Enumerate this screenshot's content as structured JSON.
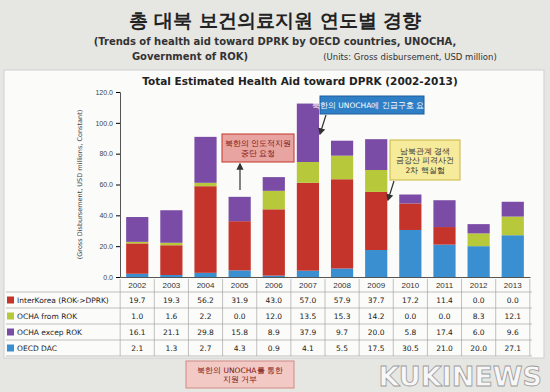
{
  "page": {
    "title": "총 대북 보건의료지원 연도별 경향",
    "subtitle": "(Trends of health aid toward DPRK by OECD countries, UNOCHA,",
    "subtitle2": "Government of ROK)",
    "units": "(Units: Gross disbursement, USD million)"
  },
  "chart_data": {
    "type": "bar",
    "stacked": true,
    "grid": false,
    "title": "Total Estimated Health Aid toward DPRK (2002-2013)",
    "y_label": "(Gross Disbursement, USD millions, Constant)",
    "categories": [
      "2002",
      "2003",
      "2004",
      "2005",
      "2006",
      "2007",
      "2008",
      "2009",
      "2010",
      "2011",
      "2012",
      "2013"
    ],
    "ylim": [
      0,
      120
    ],
    "yticks": [
      {
        "value": 0,
        "label": "0.0"
      },
      {
        "value": 20,
        "label": "20.0"
      },
      {
        "value": 40,
        "label": "40.0"
      },
      {
        "value": 60,
        "label": "60.0"
      },
      {
        "value": 80,
        "label": "80.0"
      },
      {
        "value": 100,
        "label": "100.0"
      },
      {
        "value": 120,
        "label": "120.0"
      }
    ],
    "series": [
      {
        "name": "InterKorea (ROK->DPRK)",
        "color": "#c4342b",
        "values": [
          19.7,
          19.3,
          56.2,
          31.9,
          43.0,
          57.0,
          57.9,
          37.7,
          17.2,
          11.4,
          0,
          0
        ],
        "value_labels": [
          "19.7",
          "19.3",
          "56.2",
          "31.9",
          "43.0",
          "57.0",
          "57.9",
          "37.7",
          "17.2",
          "11.4",
          "0.0",
          "0.0"
        ]
      },
      {
        "name": "OCHA from ROK",
        "color": "#b7c83a",
        "values": [
          1.0,
          1.6,
          2.2,
          0,
          12.0,
          13.5,
          15.3,
          14.2,
          0,
          0,
          8.3,
          12.1
        ],
        "value_labels": [
          "1.0",
          "1.6",
          "2.2",
          "0.0",
          "12.0",
          "13.5",
          "15.3",
          "14.2",
          "0.0",
          "0.0",
          "8.3",
          "12.1"
        ]
      },
      {
        "name": "OCHA excep ROK",
        "color": "#7a4ca6",
        "values": [
          16.1,
          21.1,
          29.8,
          15.8,
          8.9,
          37.9,
          9.7,
          20.0,
          5.8,
          17.4,
          6.0,
          9.6
        ],
        "value_labels": [
          "16.1",
          "21.1",
          "29.8",
          "15.8",
          "8.9",
          "37.9",
          "9.7",
          "20.0",
          "5.8",
          "17.4",
          "6.0",
          "9.6"
        ]
      },
      {
        "name": "OECD DAC",
        "color": "#3a8fd1",
        "values": [
          2.1,
          1.3,
          2.7,
          4.3,
          0.9,
          4.1,
          5.5,
          17.5,
          30.5,
          21.0,
          20.0,
          27.1
        ],
        "value_labels": [
          "2.1",
          "1.3",
          "2.7",
          "4.3",
          "0.9",
          "4.1",
          "5.5",
          "17.5",
          "30.5",
          "21.0",
          "20.0",
          "27.1"
        ]
      }
    ],
    "annotations": [
      {
        "lines": [
          "북한의 인도적지원",
          "중단 요청"
        ]
      },
      {
        "lines": [
          "북한의 UNOCHA에 긴급구호 요청"
        ]
      },
      {
        "lines": [
          "남북관계 경색",
          "금강산 피격사건",
          "2차 핵실험"
        ]
      },
      {
        "lines": [
          "북한의 UNOCHA를 통한",
          "지원 거부"
        ]
      }
    ],
    "watermark": "KUKINEWS"
  }
}
